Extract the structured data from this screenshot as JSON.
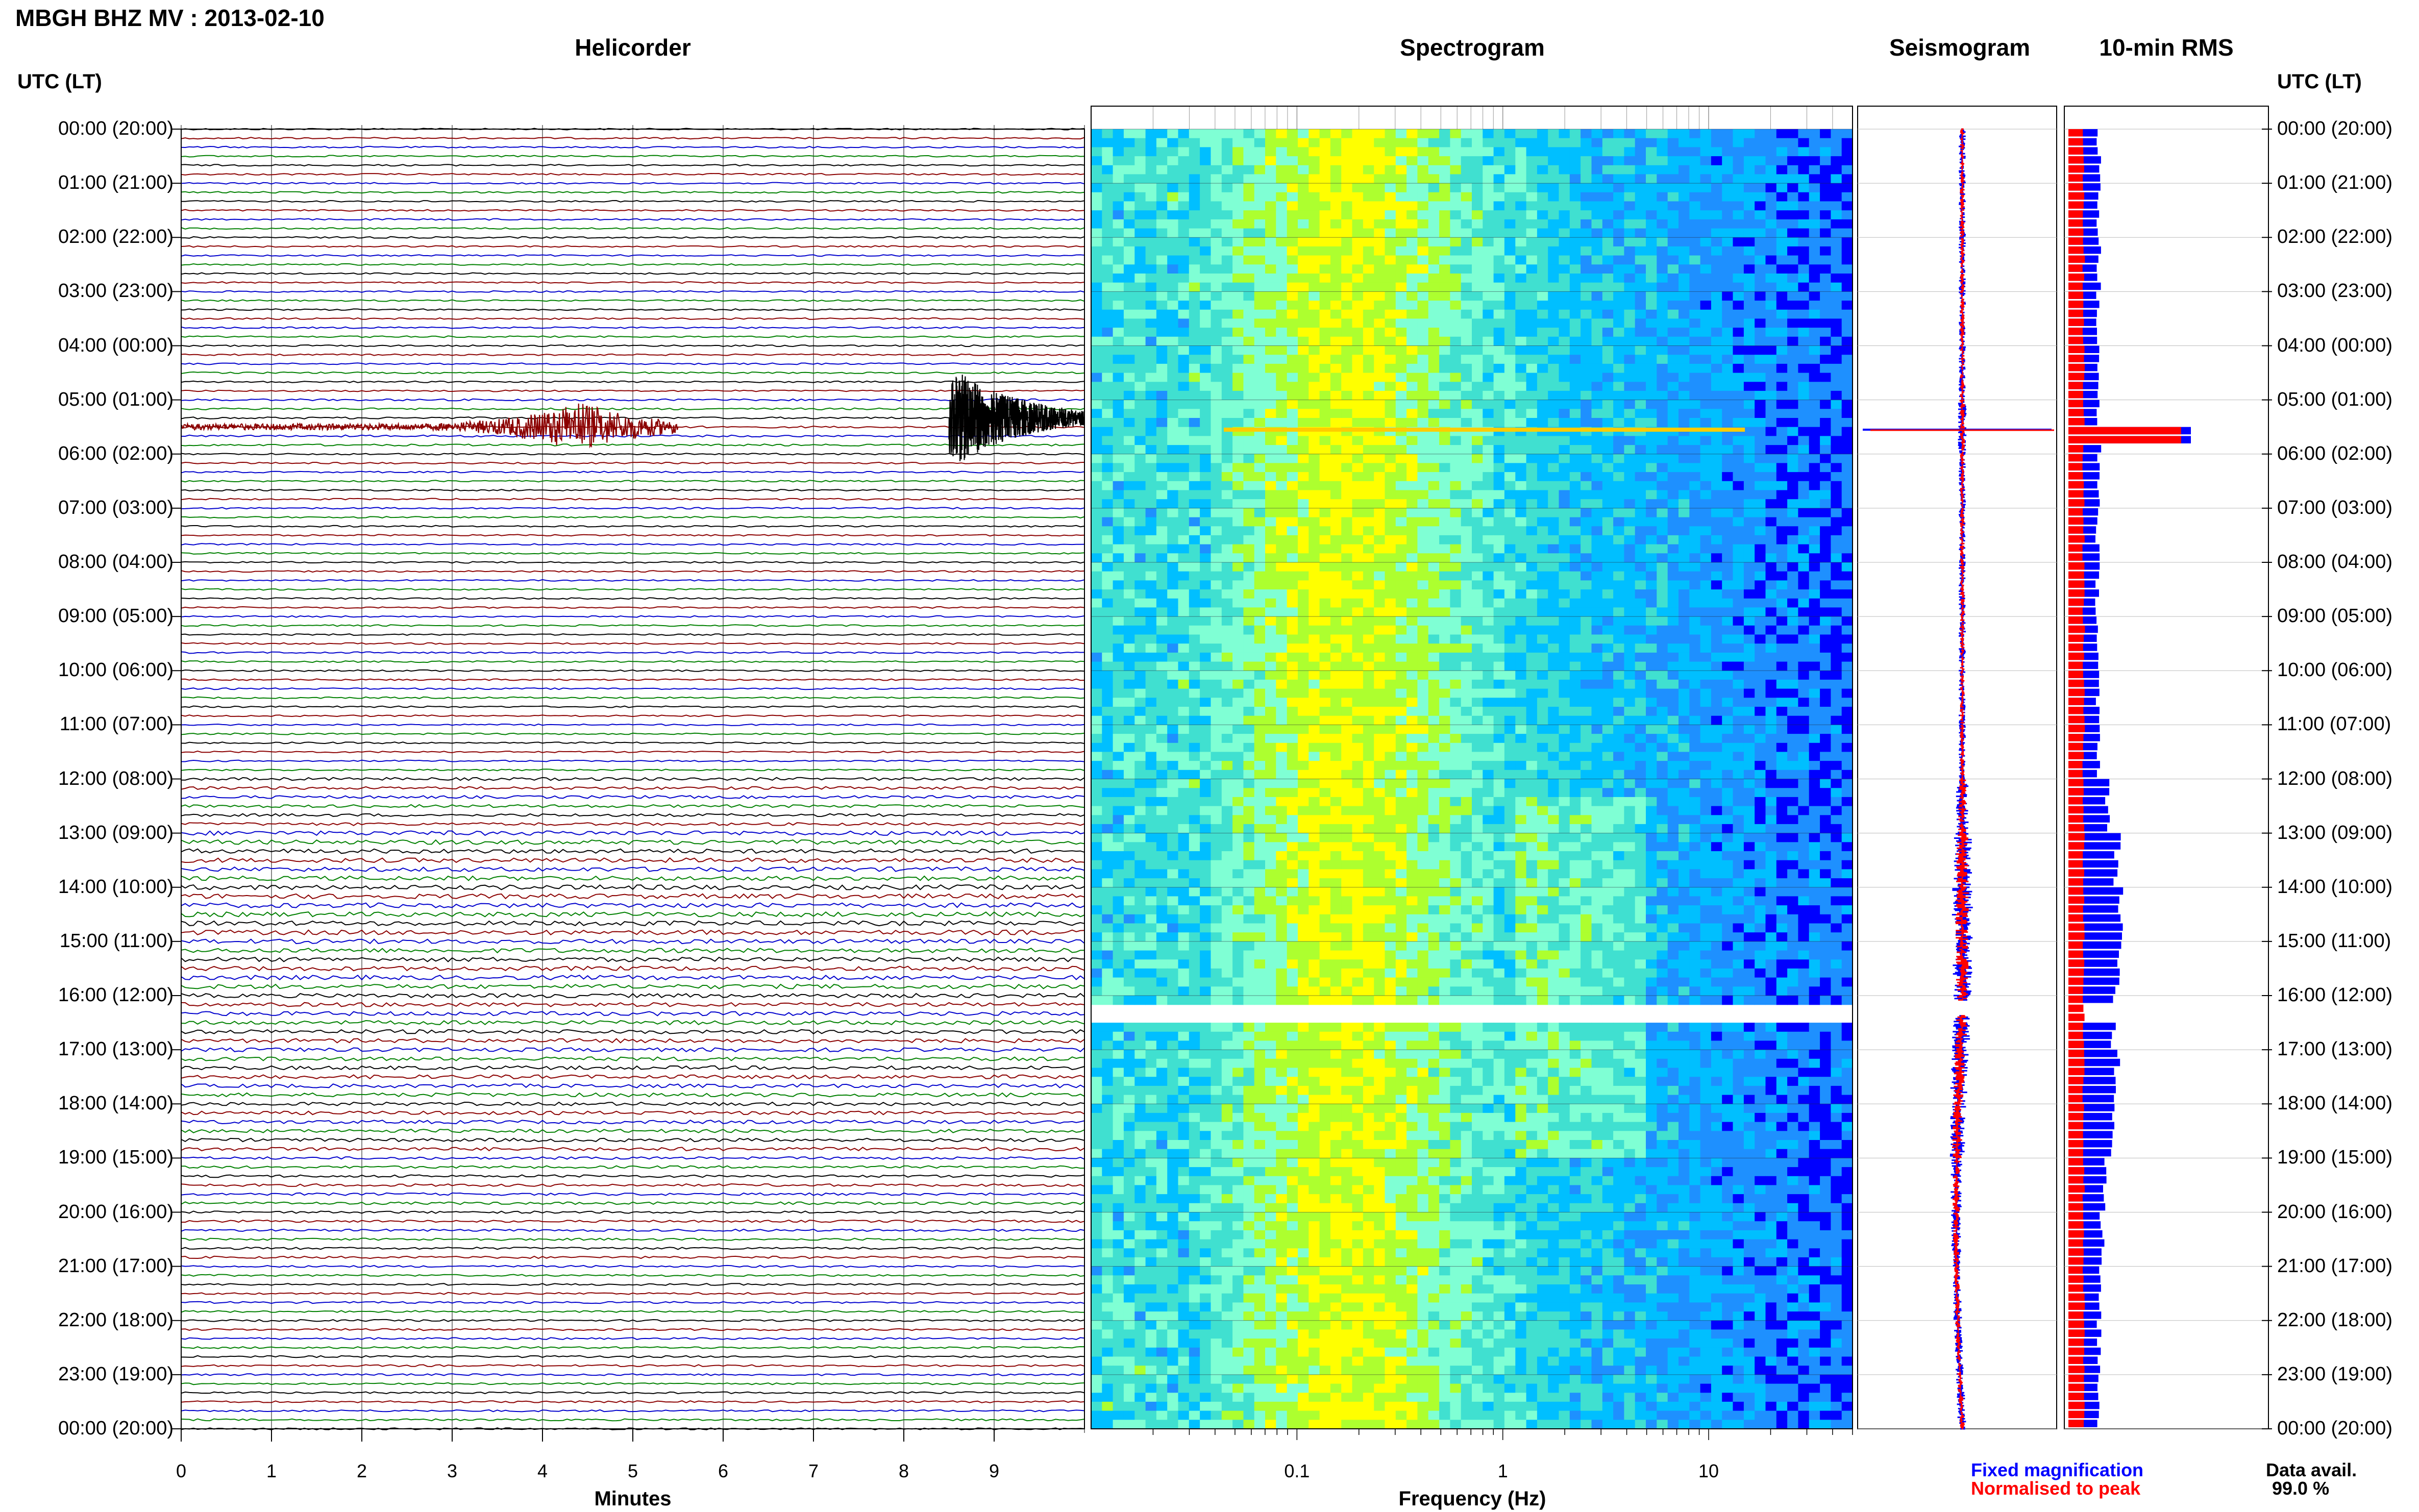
{
  "header": {
    "title": "MBGH BHZ MV : 2013-02-10"
  },
  "panels": {
    "helicorder": "Helicorder",
    "spectrogram": "Spectrogram",
    "seismogram": "Seismogram",
    "rms": "10-min RMS"
  },
  "axes": {
    "time_header_left": "UTC (LT)",
    "time_header_right": "UTC (LT)",
    "helicorder_xlabel": "Minutes",
    "spectrogram_xlabel": "Frequency (Hz)"
  },
  "legend": {
    "fixed": "Fixed magnification",
    "normalised": "Normalised to peak",
    "colors": {
      "fixed": "#0000ff",
      "normalised": "#ff0000"
    }
  },
  "availability": {
    "label": "Data avail.",
    "value": "99.0 %"
  },
  "chart_data": [
    {
      "type": "line",
      "title": "Helicorder",
      "xlabel": "Minutes",
      "xlim": [
        0,
        10
      ],
      "x_ticks": [
        "0",
        "1",
        "2",
        "3",
        "4",
        "5",
        "6",
        "7",
        "8",
        "9"
      ],
      "rows_per_hour": 6,
      "row_colors": [
        "#000000",
        "#8b0000",
        "#0000cd",
        "#008000"
      ],
      "events": [
        {
          "row": 33,
          "x_start": 0,
          "x_end": 5.5,
          "peak_minute": 4.4,
          "amplitude": 0.9,
          "color": "#8b0000"
        },
        {
          "row": 32,
          "x_start": 8.5,
          "x_end": 10,
          "peak_minute": 8.6,
          "amplitude": 1.6,
          "color": "#000000"
        }
      ],
      "time_labels": [
        "00:00 (20:00)",
        "01:00 (21:00)",
        "02:00 (22:00)",
        "03:00 (23:00)",
        "04:00 (00:00)",
        "05:00 (01:00)",
        "06:00 (02:00)",
        "07:00 (03:00)",
        "08:00 (04:00)",
        "09:00 (05:00)",
        "10:00 (06:00)",
        "11:00 (07:00)",
        "12:00 (08:00)",
        "13:00 (09:00)",
        "14:00 (10:00)",
        "15:00 (11:00)",
        "16:00 (12:00)",
        "17:00 (13:00)",
        "18:00 (14:00)",
        "19:00 (15:00)",
        "20:00 (16:00)",
        "21:00 (17:00)",
        "22:00 (18:00)",
        "23:00 (19:00)",
        "00:00 (20:00)"
      ],
      "noise_level_by_hour": [
        0.25,
        0.25,
        0.25,
        0.25,
        0.25,
        0.3,
        0.25,
        0.25,
        0.25,
        0.25,
        0.25,
        0.25,
        0.45,
        0.7,
        0.75,
        0.7,
        0.65,
        0.6,
        0.55,
        0.4,
        0.35,
        0.3,
        0.3,
        0.3
      ]
    },
    {
      "type": "heatmap",
      "title": "Spectrogram",
      "xlabel": "Frequency (Hz)",
      "xscale": "log",
      "xlim": [
        0.01,
        50
      ],
      "x_ticks": [
        "0.1",
        "1",
        "10"
      ],
      "colormap": [
        "#00008b",
        "#0000ff",
        "#1e90ff",
        "#00bfff",
        "#40e0d0",
        "#7fffd4",
        "#adff2f",
        "#ffff00"
      ],
      "data_gap_hours": [
        16.1,
        16.35
      ]
    },
    {
      "type": "line",
      "title": "Seismogram",
      "series": [
        {
          "name": "Fixed magnification",
          "color": "#0000ff"
        },
        {
          "name": "Normalised to peak",
          "color": "#ff0000"
        }
      ],
      "spike_hour": 5.55,
      "data_gap_hours": [
        16.1,
        16.35
      ]
    },
    {
      "type": "bar",
      "title": "10-min RMS",
      "series": [
        {
          "name": "Fixed magnification",
          "color": "#0000ff",
          "hourly_values": [
            1.0,
            1.0,
            1.0,
            0.95,
            0.95,
            1.0,
            1.0,
            0.95,
            0.95,
            0.95,
            0.95,
            1.0,
            1.3,
            1.6,
            1.7,
            1.6,
            1.5,
            1.6,
            1.5,
            1.2,
            1.1,
            1.0,
            1.0,
            1.0
          ]
        },
        {
          "name": "Normalised to peak",
          "color": "#ff0000",
          "hourly_values": [
            0.5,
            0.5,
            0.5,
            0.5,
            0.5,
            0.5,
            0.5,
            0.5,
            0.5,
            0.5,
            0.5,
            0.5,
            0.5,
            0.5,
            0.5,
            0.5,
            0.5,
            0.5,
            0.5,
            0.5,
            0.5,
            0.5,
            0.5,
            0.5
          ]
        }
      ],
      "spike_hour": 5.55,
      "spike_value": 4.0
    }
  ]
}
